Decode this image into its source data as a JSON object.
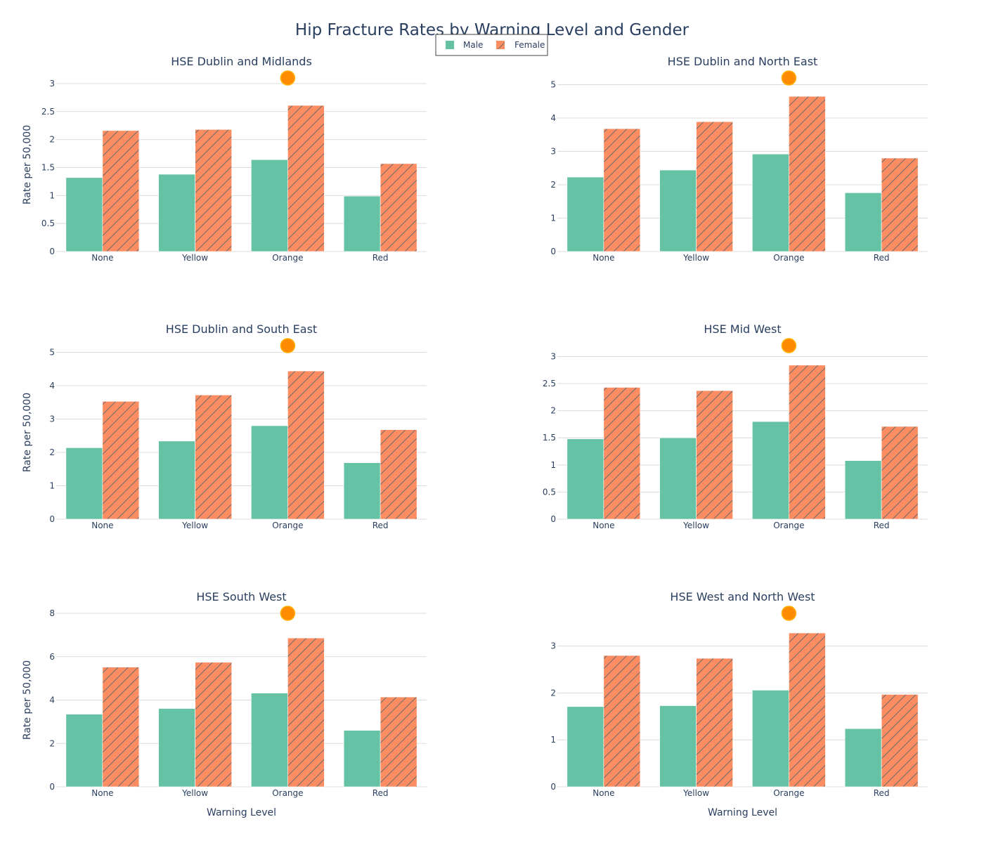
{
  "chart_data": {
    "type": "bar",
    "title": "Hip Fracture Rates by Warning Level and Gender",
    "categories": [
      "None",
      "Yellow",
      "Orange",
      "Red"
    ],
    "xlabel": "Warning Level",
    "ylabel": "Rate per 50,000",
    "legend": {
      "placement": "top-center",
      "entries": [
        "Male",
        "Female"
      ]
    },
    "colors": {
      "Male": "#66c2a5",
      "Female": "#fc8d62",
      "marker": "#ff8c00"
    },
    "marker_category": "Orange",
    "grid": true,
    "panels": [
      {
        "title": "HSE Dublin and Midlands",
        "ylim": [
          0,
          3.1
        ],
        "yticks": [
          0,
          0.5,
          1,
          1.5,
          2,
          2.5,
          3
        ],
        "ytick_labels": [
          "0",
          "0.5",
          "1",
          "1.5",
          "2",
          "2.5",
          "3"
        ],
        "show_ylabel": true,
        "show_xlabel": false,
        "series": [
          {
            "name": "Male",
            "values": [
              1.32,
              1.38,
              1.64,
              0.99
            ]
          },
          {
            "name": "Female",
            "values": [
              2.16,
              2.18,
              2.61,
              1.57
            ]
          }
        ]
      },
      {
        "title": "HSE Dublin and North East",
        "ylim": [
          0,
          5.2
        ],
        "yticks": [
          0,
          1,
          2,
          3,
          4,
          5
        ],
        "ytick_labels": [
          "0",
          "1",
          "2",
          "3",
          "4",
          "5"
        ],
        "show_ylabel": false,
        "show_xlabel": false,
        "series": [
          {
            "name": "Male",
            "values": [
              2.23,
              2.44,
              2.92,
              1.76
            ]
          },
          {
            "name": "Female",
            "values": [
              3.68,
              3.89,
              4.65,
              2.8
            ]
          }
        ]
      },
      {
        "title": "HSE Dublin and South East",
        "ylim": [
          0,
          5.2
        ],
        "yticks": [
          0,
          1,
          2,
          3,
          4,
          5
        ],
        "ytick_labels": [
          "0",
          "1",
          "2",
          "3",
          "4",
          "5"
        ],
        "show_ylabel": true,
        "show_xlabel": false,
        "series": [
          {
            "name": "Male",
            "values": [
              2.14,
              2.34,
              2.8,
              1.69
            ]
          },
          {
            "name": "Female",
            "values": [
              3.53,
              3.72,
              4.44,
              2.68
            ]
          }
        ]
      },
      {
        "title": "HSE Mid West",
        "ylim": [
          0,
          3.2
        ],
        "yticks": [
          0,
          0.5,
          1,
          1.5,
          2,
          2.5,
          3
        ],
        "ytick_labels": [
          "0",
          "0.5",
          "1",
          "1.5",
          "2",
          "2.5",
          "3"
        ],
        "show_ylabel": false,
        "show_xlabel": false,
        "series": [
          {
            "name": "Male",
            "values": [
              1.48,
              1.5,
              1.8,
              1.08
            ]
          },
          {
            "name": "Female",
            "values": [
              2.43,
              2.37,
              2.84,
              1.71
            ]
          }
        ]
      },
      {
        "title": "HSE South West",
        "ylim": [
          0,
          8.0
        ],
        "yticks": [
          0,
          2,
          4,
          6,
          8
        ],
        "ytick_labels": [
          "0",
          "2",
          "4",
          "6",
          "8"
        ],
        "show_ylabel": true,
        "show_xlabel": true,
        "series": [
          {
            "name": "Male",
            "values": [
              3.35,
              3.61,
              4.32,
              2.6
            ]
          },
          {
            "name": "Female",
            "values": [
              5.52,
              5.74,
              6.86,
              4.14
            ]
          }
        ]
      },
      {
        "title": "HSE West and North West",
        "ylim": [
          0,
          3.7
        ],
        "yticks": [
          0,
          1,
          2,
          3
        ],
        "ytick_labels": [
          "0",
          "1",
          "2",
          "3"
        ],
        "show_ylabel": false,
        "show_xlabel": true,
        "series": [
          {
            "name": "Male",
            "values": [
              1.71,
              1.73,
              2.06,
              1.24
            ]
          },
          {
            "name": "Female",
            "values": [
              2.8,
              2.74,
              3.28,
              1.97
            ]
          }
        ]
      }
    ]
  }
}
